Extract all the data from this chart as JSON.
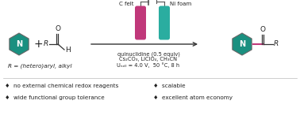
{
  "bg_color": "#ffffff",
  "teal_color": "#1a9080",
  "pink_color": "#c0387a",
  "anode_color": "#c0387a",
  "cathode_color": "#2aada0",
  "text_color": "#222222",
  "conditions_line1": "quinuclidine (0.5 equiv)",
  "conditions_line2": "Cs₂CO₃, LiClO₄, CH₃CN",
  "conditions_line3": "Uₙₑₗₗ = 4.0 V,  50 °C, 8 h",
  "label_R": "R = (hetero)aryl, alkyl",
  "c_felt": "C felt",
  "ni_foam": "Ni foam",
  "bullet1": "♦  no external chemical redox reagents",
  "bullet2": "♦  wide functional group tolerance",
  "bullet3": "♦  scalable",
  "bullet4": "♦  excellent atom economy"
}
